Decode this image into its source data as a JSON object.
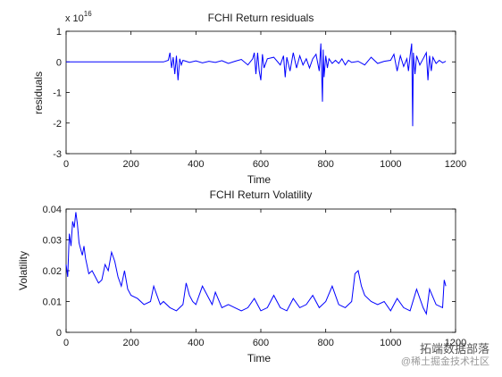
{
  "chart_data": [
    {
      "type": "line",
      "title": "FCHI Return residuals",
      "xlabel": "Time",
      "ylabel": "residuals",
      "exponent_label": "x 10",
      "exponent_power": "16",
      "scale_multiplier": 1e+16,
      "xlim": [
        0,
        1200
      ],
      "ylim": [
        -3,
        1
      ],
      "xticks": [
        0,
        200,
        400,
        600,
        800,
        1000,
        1200
      ],
      "yticks": [
        -3,
        -2,
        -1,
        0,
        1
      ],
      "grid": false,
      "color": "#0000ff",
      "series": [
        {
          "x": [
            0,
            300,
            315,
            320,
            325,
            330,
            335,
            340,
            345,
            350,
            355,
            360,
            370,
            380,
            400,
            420,
            440,
            460,
            480,
            500,
            520,
            540,
            560,
            575,
            580,
            585,
            590,
            595,
            600,
            605,
            610,
            620,
            640,
            660,
            670,
            675,
            680,
            690,
            700,
            710,
            720,
            730,
            740,
            750,
            760,
            770,
            780,
            785,
            790,
            792,
            795,
            800,
            805,
            810,
            820,
            830,
            840,
            850,
            860,
            870,
            880,
            900,
            920,
            940,
            960,
            980,
            1000,
            1010,
            1020,
            1030,
            1040,
            1050,
            1055,
            1060,
            1065,
            1068,
            1070,
            1075,
            1080,
            1090,
            1100,
            1110,
            1115,
            1120,
            1125,
            1130,
            1140,
            1150,
            1160,
            1170
          ],
          "y": [
            0,
            0,
            0.05,
            0.3,
            -0.2,
            0.15,
            -0.4,
            0.2,
            -0.6,
            0.1,
            -0.1,
            0.05,
            0.02,
            -0.02,
            0.03,
            -0.03,
            0.02,
            -0.02,
            0.04,
            -0.05,
            0.02,
            0.08,
            -0.1,
            0.1,
            0.3,
            -0.4,
            0.3,
            -0.3,
            -0.6,
            0.25,
            -0.2,
            0.1,
            0.15,
            -0.1,
            0.2,
            -0.5,
            0.15,
            -0.3,
            0.3,
            -0.2,
            0.2,
            -0.1,
            0.1,
            -0.2,
            0.1,
            0.25,
            -0.3,
            0.6,
            -1.3,
            0.4,
            -0.5,
            0.2,
            -0.2,
            0.1,
            -0.05,
            0.05,
            -0.05,
            0.1,
            -0.1,
            0.05,
            -0.02,
            0.02,
            -0.1,
            0.15,
            -0.05,
            0.02,
            0.05,
            0.25,
            -0.3,
            0.2,
            -0.15,
            0.1,
            -0.3,
            0.2,
            0.6,
            -2.1,
            0.3,
            -0.4,
            0.2,
            -0.1,
            0.1,
            0.3,
            -0.6,
            0.2,
            -0.3,
            0.15,
            -0.05,
            0.05,
            -0.03,
            0.02
          ]
        }
      ]
    },
    {
      "type": "line",
      "title": "FCHI Return Volatility",
      "xlabel": "Time",
      "ylabel": "Volatility",
      "xlim": [
        0,
        1200
      ],
      "ylim": [
        0,
        0.04
      ],
      "xticks": [
        0,
        200,
        400,
        600,
        800,
        1000,
        1200
      ],
      "yticks": [
        0,
        0.01,
        0.02,
        0.03,
        0.04
      ],
      "grid": false,
      "color": "#0000ff",
      "series": [
        {
          "x": [
            0,
            5,
            10,
            15,
            20,
            25,
            30,
            35,
            40,
            45,
            50,
            55,
            60,
            70,
            80,
            90,
            100,
            110,
            120,
            130,
            140,
            150,
            160,
            170,
            180,
            190,
            200,
            220,
            240,
            260,
            270,
            280,
            290,
            300,
            320,
            340,
            360,
            370,
            380,
            390,
            400,
            420,
            440,
            450,
            460,
            480,
            500,
            520,
            540,
            560,
            580,
            600,
            620,
            640,
            660,
            680,
            700,
            720,
            740,
            760,
            780,
            800,
            820,
            840,
            860,
            880,
            890,
            900,
            910,
            920,
            940,
            960,
            980,
            1000,
            1020,
            1040,
            1060,
            1080,
            1100,
            1110,
            1120,
            1140,
            1160,
            1165,
            1170
          ],
          "y": [
            0.022,
            0.018,
            0.032,
            0.028,
            0.036,
            0.034,
            0.039,
            0.035,
            0.029,
            0.027,
            0.025,
            0.028,
            0.024,
            0.019,
            0.02,
            0.018,
            0.016,
            0.017,
            0.022,
            0.02,
            0.026,
            0.023,
            0.018,
            0.015,
            0.02,
            0.014,
            0.012,
            0.011,
            0.009,
            0.01,
            0.015,
            0.012,
            0.009,
            0.01,
            0.008,
            0.007,
            0.009,
            0.016,
            0.012,
            0.01,
            0.009,
            0.015,
            0.011,
            0.009,
            0.013,
            0.008,
            0.009,
            0.008,
            0.007,
            0.008,
            0.011,
            0.007,
            0.008,
            0.012,
            0.008,
            0.007,
            0.011,
            0.008,
            0.009,
            0.012,
            0.008,
            0.01,
            0.015,
            0.009,
            0.008,
            0.01,
            0.019,
            0.02,
            0.015,
            0.012,
            0.01,
            0.009,
            0.01,
            0.007,
            0.011,
            0.008,
            0.007,
            0.014,
            0.008,
            0.006,
            0.014,
            0.009,
            0.008,
            0.017,
            0.015
          ]
        }
      ]
    }
  ],
  "watermark": {
    "title": "拓端数据部落",
    "subtitle": "@稀土掘金技术社区"
  }
}
